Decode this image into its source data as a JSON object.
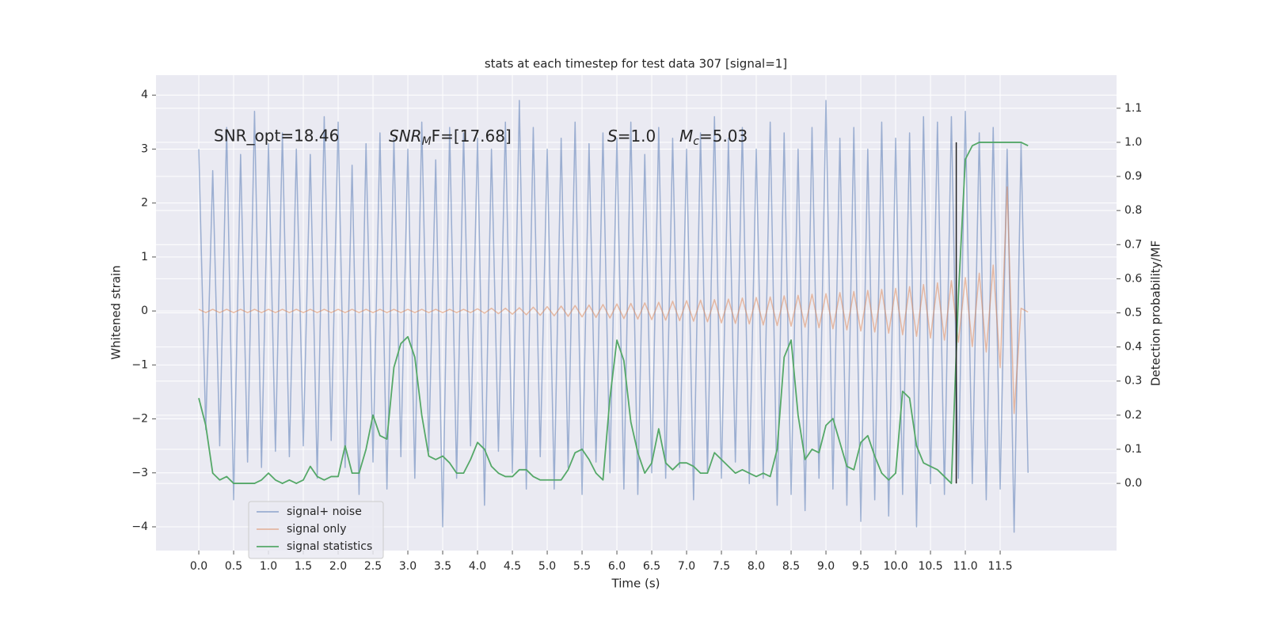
{
  "chart_data": {
    "type": "line",
    "title": "stats at each timestep for test data 307 [signal=1]",
    "xlabel": "Time (s)",
    "ylabel": "Whitened strain",
    "y2label": "Detection probability/MF",
    "annotations": [
      "SNR_opt=18.46",
      [
        "SNR",
        "M",
        "F=[17.68]"
      ],
      [
        "S",
        "=1.0"
      ],
      [
        "M",
        "c",
        "=5.03"
      ]
    ],
    "grid": true,
    "legend": "lower left",
    "xlim": [
      -0.614,
      13.17
    ],
    "ylim": [
      -4.44,
      4.37
    ],
    "y2lim": [
      -0.197,
      1.197
    ],
    "xticks": [
      {
        "value": 0,
        "label": "0.0"
      },
      {
        "value": 0.5,
        "label": "0.5"
      },
      {
        "value": 1,
        "label": "1.0"
      },
      {
        "value": 1.5,
        "label": "1.5"
      },
      {
        "value": 2,
        "label": "2.0"
      },
      {
        "value": 2.5,
        "label": "2.5"
      },
      {
        "value": 3,
        "label": "3.0"
      },
      {
        "value": 3.5,
        "label": "3.5"
      },
      {
        "value": 4,
        "label": "4.0"
      },
      {
        "value": 4.5,
        "label": "4.5"
      },
      {
        "value": 5,
        "label": "5.0"
      },
      {
        "value": 5.5,
        "label": "5.5"
      },
      {
        "value": 6,
        "label": "6.0"
      },
      {
        "value": 6.5,
        "label": "6.5"
      },
      {
        "value": 7,
        "label": "7.0"
      },
      {
        "value": 7.5,
        "label": "7.5"
      },
      {
        "value": 8,
        "label": "8.0"
      },
      {
        "value": 8.5,
        "label": "8.5"
      },
      {
        "value": 9,
        "label": "9.0"
      },
      {
        "value": 9.5,
        "label": "9.5"
      },
      {
        "value": 10,
        "label": "10.0"
      },
      {
        "value": 10.5,
        "label": "10.5"
      },
      {
        "value": 11,
        "label": "11.0"
      },
      {
        "value": 11.5,
        "label": "11.5"
      }
    ],
    "yticks": [
      {
        "value": -4,
        "label": "−4"
      },
      {
        "value": -3,
        "label": "−3"
      },
      {
        "value": -2,
        "label": "−2"
      },
      {
        "value": -1,
        "label": "−1"
      },
      0,
      1,
      2,
      3,
      4
    ],
    "y2ticks": [
      {
        "value": 0,
        "label": "0.0"
      },
      {
        "value": 0.1,
        "label": "0.1"
      },
      {
        "value": 0.2,
        "label": "0.2"
      },
      {
        "value": 0.3,
        "label": "0.3"
      },
      {
        "value": 0.4,
        "label": "0.4"
      },
      {
        "value": 0.5,
        "label": "0.5"
      },
      {
        "value": 0.6,
        "label": "0.6"
      },
      {
        "value": 0.7,
        "label": "0.7"
      },
      {
        "value": 0.8,
        "label": "0.8"
      },
      {
        "value": 0.9,
        "label": "0.9"
      },
      {
        "value": 1,
        "label": "1.0"
      },
      {
        "value": 1.1,
        "label": "1.1"
      }
    ],
    "x": [
      0,
      0.1,
      0.2,
      0.3,
      0.4,
      0.5,
      0.6,
      0.7,
      0.8,
      0.9,
      1,
      1.1,
      1.2,
      1.3,
      1.4,
      1.5,
      1.6,
      1.7,
      1.8,
      1.9,
      2,
      2.1,
      2.2,
      2.3,
      2.4,
      2.5,
      2.6,
      2.7,
      2.8,
      2.9,
      3,
      3.1,
      3.2,
      3.3,
      3.4,
      3.5,
      3.6,
      3.7,
      3.8,
      3.9,
      4,
      4.1,
      4.2,
      4.3,
      4.4,
      4.5,
      4.6,
      4.7,
      4.8,
      4.9,
      5,
      5.1,
      5.2,
      5.3,
      5.4,
      5.5,
      5.6,
      5.7,
      5.8,
      5.9,
      6,
      6.1,
      6.2,
      6.3,
      6.4,
      6.5,
      6.6,
      6.7,
      6.8,
      6.9,
      7,
      7.1,
      7.2,
      7.3,
      7.4,
      7.5,
      7.6,
      7.7,
      7.8,
      7.9,
      8,
      8.1,
      8.2,
      8.3,
      8.4,
      8.5,
      8.6,
      8.7,
      8.8,
      8.9,
      9,
      9.1,
      9.2,
      9.3,
      9.4,
      9.5,
      9.6,
      9.7,
      9.8,
      9.9,
      10,
      10.1,
      10.2,
      10.3,
      10.4,
      10.5,
      10.6,
      10.7,
      10.8,
      10.9,
      11,
      11.1,
      11.2,
      11.3,
      11.4,
      11.5,
      11.6,
      11.7,
      11.8,
      11.9
    ],
    "series": [
      {
        "name": "signal+ noise",
        "color": "#4c72b0",
        "values": [
          3.0,
          -2.2,
          2.6,
          -2.5,
          3.4,
          -3.5,
          2.9,
          -2.8,
          3.7,
          -2.9,
          3.1,
          -2.6,
          3.3,
          -2.7,
          3.0,
          -2.5,
          2.9,
          -3.1,
          3.6,
          -2.4,
          3.5,
          -2.9,
          2.7,
          -3.4,
          3.1,
          -2.8,
          3.3,
          -3.3,
          3.2,
          -2.7,
          3.0,
          -3.1,
          3.5,
          -2.6,
          2.8,
          -4.0,
          3.4,
          -3.1,
          3.3,
          -2.5,
          3.2,
          -3.6,
          3.0,
          -2.6,
          3.5,
          -3.0,
          3.9,
          -3.3,
          3.4,
          -2.7,
          3.0,
          -3.3,
          3.2,
          -2.9,
          3.5,
          -3.4,
          3.1,
          -2.8,
          3.3,
          -3.0,
          3.2,
          -3.3,
          3.5,
          -3.4,
          2.9,
          -3.0,
          3.4,
          -3.1,
          3.2,
          -2.9,
          3.0,
          -3.5,
          3.3,
          -3.0,
          3.6,
          -3.1,
          3.2,
          -2.8,
          3.4,
          -3.2,
          3.0,
          -3.1,
          3.5,
          -3.6,
          3.3,
          -3.4,
          3.0,
          -3.7,
          3.4,
          -3.1,
          3.9,
          -3.3,
          3.2,
          -3.6,
          3.4,
          -3.9,
          3.0,
          -3.5,
          3.5,
          -3.8,
          3.2,
          -3.4,
          3.3,
          -4.0,
          3.6,
          -3.2,
          3.5,
          -3.4,
          3.6,
          -3.1,
          3.7,
          -3.2,
          3.3,
          -3.5,
          3.4,
          -3.3,
          3.0,
          -4.1,
          3.1,
          -3.0
        ]
      },
      {
        "name": "signal only",
        "color": "#dd8452",
        "values": [
          0.03,
          -0.03,
          0.03,
          -0.03,
          0.03,
          -0.03,
          0.03,
          -0.03,
          0.03,
          -0.03,
          0.03,
          -0.03,
          0.03,
          -0.03,
          0.03,
          -0.03,
          0.03,
          -0.03,
          0.03,
          -0.03,
          0.03,
          -0.03,
          0.03,
          -0.03,
          0.03,
          -0.03,
          0.03,
          -0.03,
          0.03,
          -0.03,
          0.03,
          -0.03,
          0.03,
          -0.03,
          0.03,
          -0.03,
          0.03,
          -0.03,
          0.03,
          -0.03,
          0.04,
          -0.04,
          0.05,
          -0.05,
          0.05,
          -0.06,
          0.06,
          -0.07,
          0.07,
          -0.08,
          0.08,
          -0.09,
          0.09,
          -0.1,
          0.1,
          -0.11,
          0.11,
          -0.12,
          0.12,
          -0.13,
          0.13,
          -0.14,
          0.14,
          -0.15,
          0.15,
          -0.16,
          0.16,
          -0.17,
          0.18,
          -0.18,
          0.19,
          -0.19,
          0.2,
          -0.2,
          0.21,
          -0.22,
          0.22,
          -0.23,
          0.24,
          -0.24,
          0.25,
          -0.26,
          0.26,
          -0.27,
          0.28,
          -0.28,
          0.29,
          -0.3,
          0.31,
          -0.31,
          0.32,
          -0.33,
          0.34,
          -0.35,
          0.36,
          -0.37,
          0.38,
          -0.39,
          0.4,
          -0.41,
          0.42,
          -0.44,
          0.45,
          -0.47,
          0.49,
          -0.5,
          0.52,
          -0.54,
          0.56,
          -0.58,
          0.62,
          -0.66,
          0.7,
          -0.76,
          0.85,
          -1.05,
          2.3,
          -1.9,
          0.05,
          -0.02
        ]
      },
      {
        "name": "signal statistics",
        "color": "#55a868",
        "axis": "y2",
        "values": [
          0.25,
          0.17,
          0.03,
          0.01,
          0.02,
          0,
          0,
          0,
          0,
          0.01,
          0.03,
          0.01,
          0,
          0.01,
          0,
          0.01,
          0.05,
          0.02,
          0.01,
          0.02,
          0.02,
          0.11,
          0.03,
          0.03,
          0.1,
          0.2,
          0.14,
          0.13,
          0.34,
          0.41,
          0.43,
          0.37,
          0.2,
          0.08,
          0.07,
          0.08,
          0.06,
          0.03,
          0.03,
          0.07,
          0.12,
          0.1,
          0.05,
          0.03,
          0.02,
          0.02,
          0.04,
          0.04,
          0.02,
          0.01,
          0.01,
          0.01,
          0.01,
          0.04,
          0.09,
          0.1,
          0.07,
          0.03,
          0.01,
          0.25,
          0.42,
          0.36,
          0.18,
          0.09,
          0.03,
          0.06,
          0.16,
          0.06,
          0.04,
          0.06,
          0.06,
          0.05,
          0.03,
          0.03,
          0.09,
          0.07,
          0.05,
          0.03,
          0.04,
          0.03,
          0.02,
          0.03,
          0.02,
          0.1,
          0.37,
          0.42,
          0.2,
          0.07,
          0.1,
          0.09,
          0.17,
          0.19,
          0.12,
          0.05,
          0.04,
          0.12,
          0.14,
          0.08,
          0.03,
          0.01,
          0.03,
          0.27,
          0.25,
          0.11,
          0.06,
          0.05,
          0.04,
          0.02,
          0,
          0.55,
          0.95,
          0.99,
          1,
          1,
          1,
          1,
          1,
          1,
          1,
          0.99
        ]
      }
    ],
    "vlines": [
      {
        "x": 10.87,
        "ymin": 0,
        "ymax": 1,
        "color": "#222222",
        "axis": "y2"
      }
    ]
  }
}
